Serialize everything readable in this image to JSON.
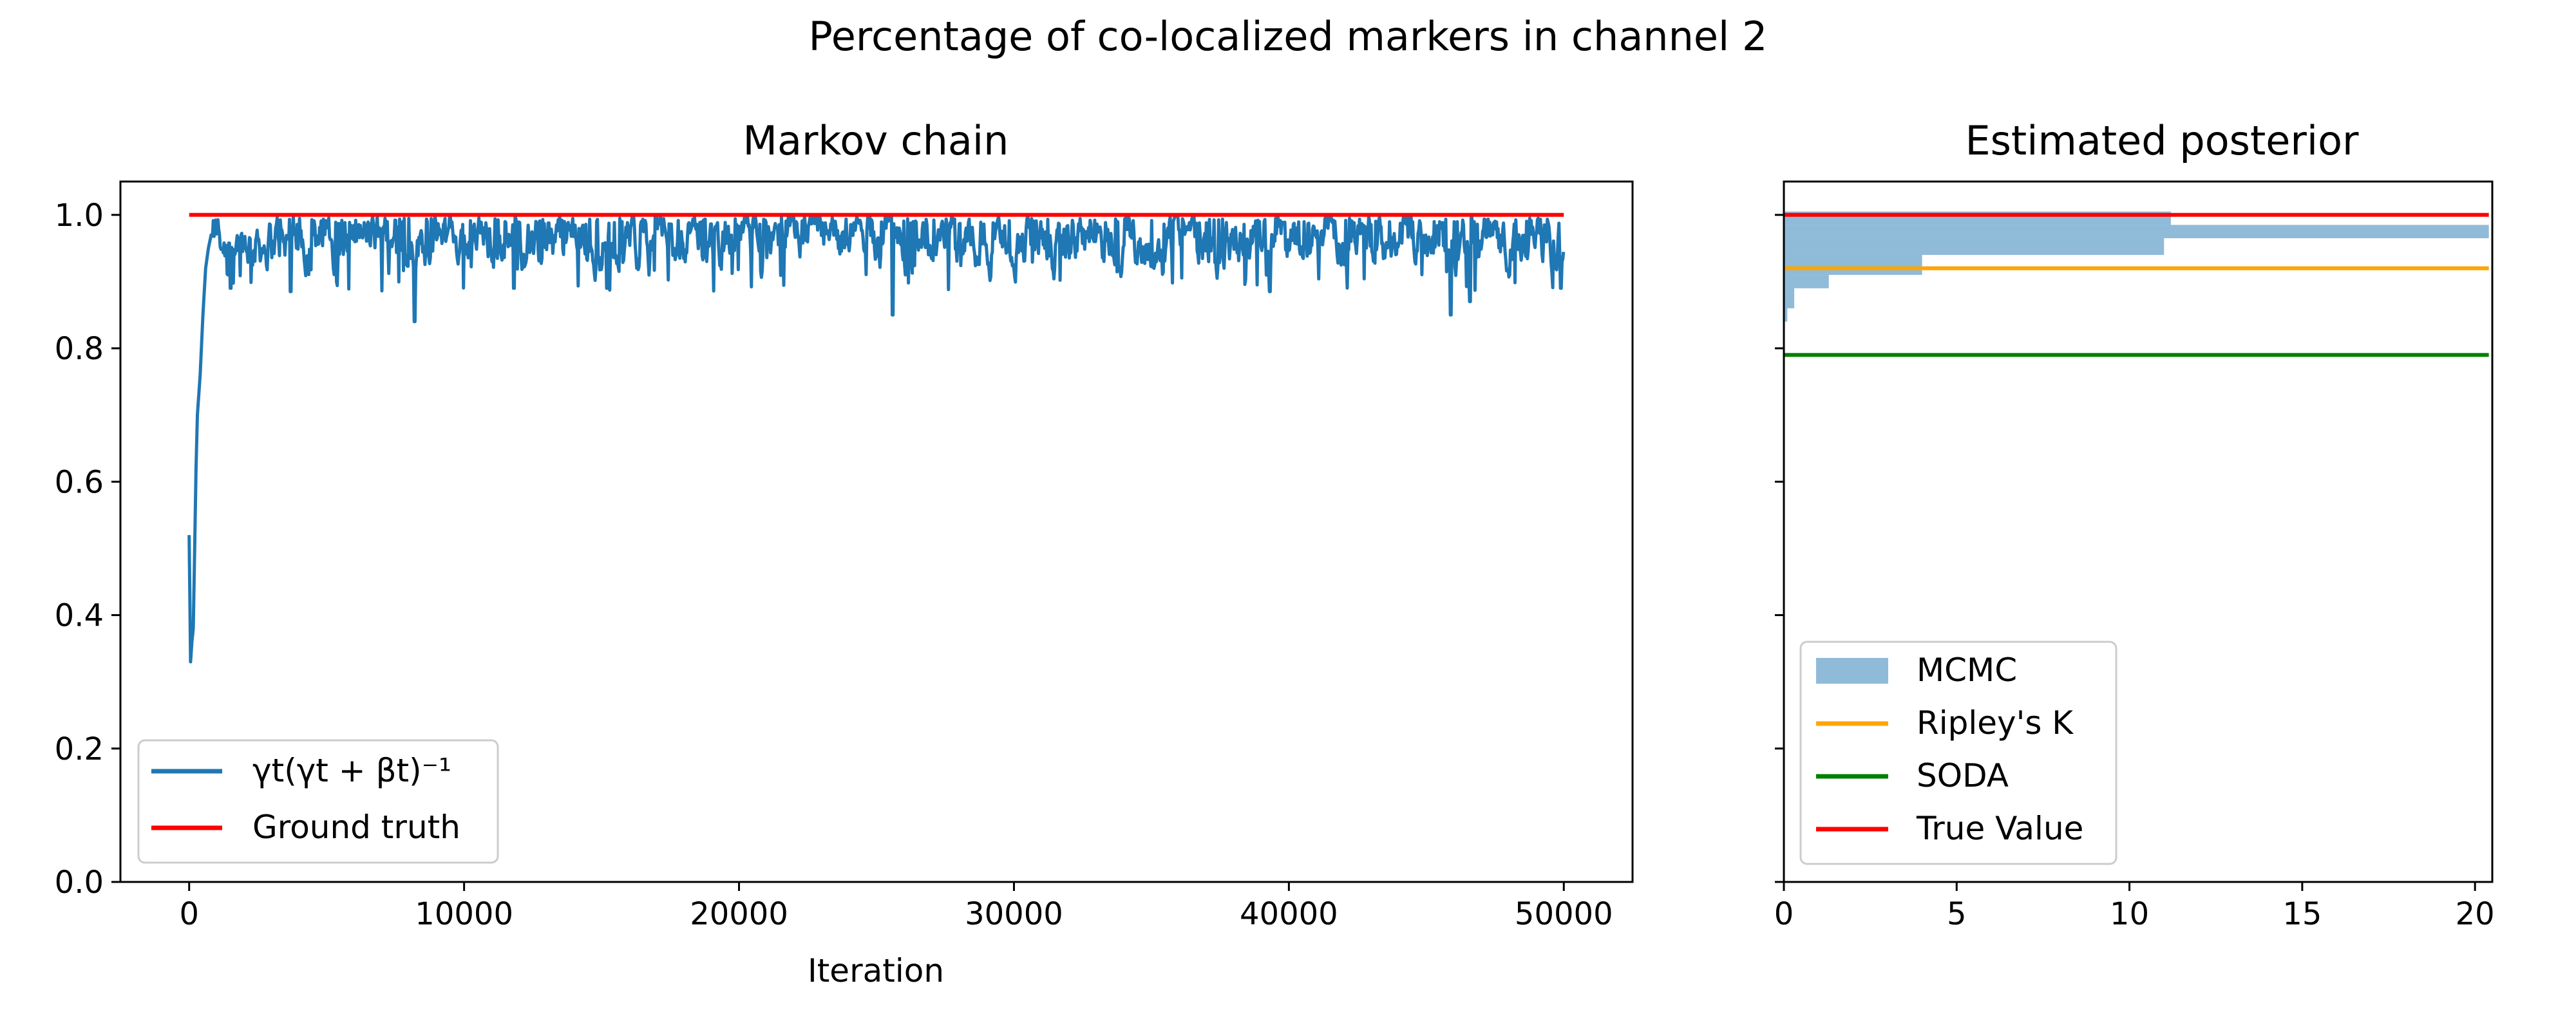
{
  "figure_title": "Percentage of co-localized markers in channel 2",
  "chart_data": [
    {
      "type": "line",
      "title": "Markov chain",
      "xlabel": "Iteration",
      "ylabel": "",
      "xlim": [
        -2500,
        52500
      ],
      "ylim": [
        0.0,
        1.05
      ],
      "xticks": [
        0,
        10000,
        20000,
        30000,
        40000,
        50000
      ],
      "yticks": [
        "0.0",
        "0.2",
        "0.4",
        "0.6",
        "0.8",
        "1.0"
      ],
      "legend_position": "lower-left",
      "series": [
        {
          "name": "γt(γt + βt)⁻¹",
          "color": "#1f77b4",
          "burn_in": {
            "x": [
              0,
              50,
              100,
              150,
              200,
              250,
              300,
              400,
              500,
              600,
              700,
              800
            ],
            "y": [
              0.52,
              0.33,
              0.36,
              0.38,
              0.5,
              0.62,
              0.7,
              0.76,
              0.85,
              0.92,
              0.95,
              0.97
            ]
          },
          "x_range": [
            0,
            50000
          ],
          "typical_range": [
            0.92,
            0.995
          ],
          "dips": [
            [
              1500,
              0.89
            ],
            [
              3700,
              0.885
            ],
            [
              8200,
              0.84
            ],
            [
              11800,
              0.89
            ],
            [
              15200,
              0.89
            ],
            [
              25600,
              0.85
            ],
            [
              39300,
              0.885
            ],
            [
              45900,
              0.85
            ],
            [
              46600,
              0.87
            ],
            [
              49900,
              0.89
            ]
          ]
        },
        {
          "name": "Ground truth",
          "color": "#ff0000",
          "x": [
            0,
            50000
          ],
          "y": [
            1.0,
            1.0
          ]
        }
      ]
    },
    {
      "type": "bar",
      "orientation": "horizontal",
      "title": "Estimated posterior",
      "xlim": [
        0,
        20.5
      ],
      "ylim": [
        0.0,
        1.05
      ],
      "xticks": [
        0,
        5,
        10,
        15,
        20
      ],
      "legend_position": "lower-left",
      "histogram": {
        "name": "MCMC",
        "color": "#1f77b4",
        "alpha": 0.5,
        "bins": [
          {
            "y0": 0.84,
            "y1": 0.86,
            "value": 0.1
          },
          {
            "y0": 0.86,
            "y1": 0.89,
            "value": 0.3
          },
          {
            "y0": 0.89,
            "y1": 0.91,
            "value": 1.3
          },
          {
            "y0": 0.91,
            "y1": 0.94,
            "value": 4.0
          },
          {
            "y0": 0.94,
            "y1": 0.965,
            "value": 11.0
          },
          {
            "y0": 0.965,
            "y1": 0.985,
            "value": 20.4
          },
          {
            "y0": 0.985,
            "y1": 1.005,
            "value": 11.2
          }
        ]
      },
      "lines": [
        {
          "name": "Ripley's K",
          "color": "#ffa500",
          "y": 0.92
        },
        {
          "name": "SODA",
          "color": "#008000",
          "y": 0.79
        },
        {
          "name": "True Value",
          "color": "#ff0000",
          "y": 1.0
        }
      ]
    }
  ]
}
